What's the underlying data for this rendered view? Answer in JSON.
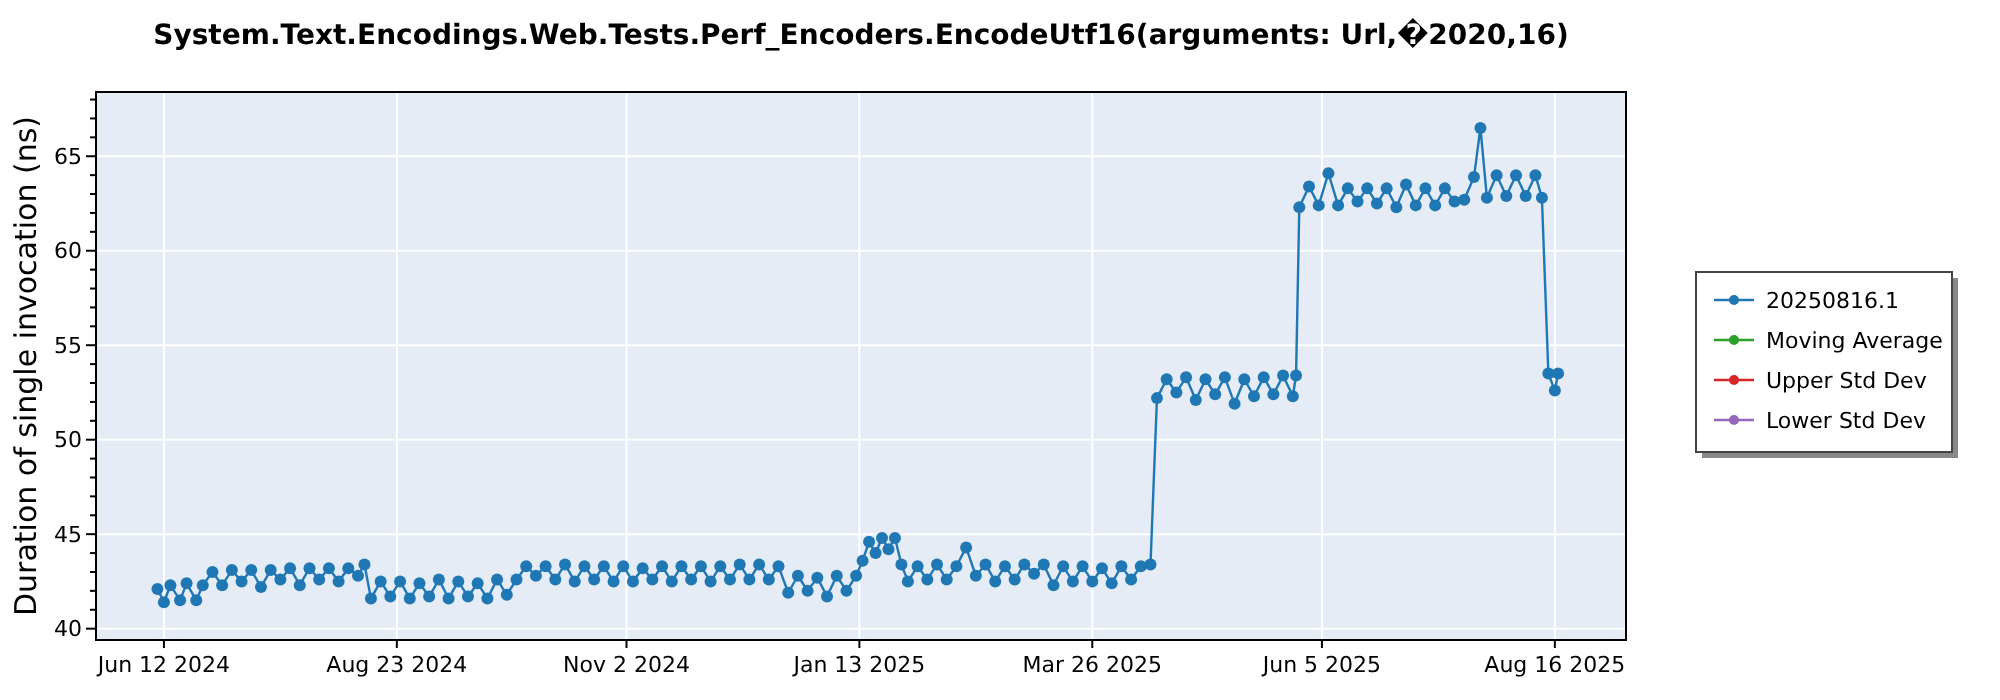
{
  "chart_data": {
    "type": "line",
    "title": "System.Text.Encodings.Web.Tests.Perf_Encoders.EncodeUtf16(arguments: Url,�2020,16)",
    "ylabel": "Duration of single invocation (ns)",
    "xlim": [
      "2024-05-22",
      "2025-09-07"
    ],
    "xticks": [
      {
        "value": "2024-06-12",
        "label": "Jun 12 2024"
      },
      {
        "value": "2024-08-23",
        "label": "Aug 23 2024"
      },
      {
        "value": "2024-11-02",
        "label": "Nov 2 2024"
      },
      {
        "value": "2025-01-13",
        "label": "Jan 13 2025"
      },
      {
        "value": "2025-03-26",
        "label": "Mar 26 2025"
      },
      {
        "value": "2025-06-05",
        "label": "Jun 5 2025"
      },
      {
        "value": "2025-08-16",
        "label": "Aug 16 2025"
      }
    ],
    "ylim": [
      39.4,
      68.4
    ],
    "yticks": [
      40,
      {
        "value": 41,
        "label": null
      },
      {
        "value": 42,
        "label": null
      },
      {
        "value": 43,
        "label": null
      },
      {
        "value": 44,
        "label": null
      },
      45,
      {
        "value": 46,
        "label": null
      },
      {
        "value": 47,
        "label": null
      },
      {
        "value": 48,
        "label": null
      },
      {
        "value": 49,
        "label": null
      },
      50,
      {
        "value": 51,
        "label": null
      },
      {
        "value": 52,
        "label": null
      },
      {
        "value": 53,
        "label": null
      },
      {
        "value": 54,
        "label": null
      },
      55,
      {
        "value": 56,
        "label": null
      },
      {
        "value": 57,
        "label": null
      },
      {
        "value": 58,
        "label": null
      },
      {
        "value": 59,
        "label": null
      },
      60,
      {
        "value": 61,
        "label": null
      },
      {
        "value": 62,
        "label": null
      },
      {
        "value": 63,
        "label": null
      },
      {
        "value": 64,
        "label": null
      },
      65,
      {
        "value": 66,
        "label": null
      },
      {
        "value": 67,
        "label": null
      },
      {
        "value": 68,
        "label": null
      }
    ],
    "grid": true,
    "legend": "right",
    "marker": "circle",
    "line_style": "solid",
    "series": [
      {
        "name": "20250816.1",
        "color": "#1f77b4",
        "x": [
          "2024-06-10",
          "2024-06-12",
          "2024-06-14",
          "2024-06-17",
          "2024-06-19",
          "2024-06-22",
          "2024-06-24",
          "2024-06-27",
          "2024-06-30",
          "2024-07-03",
          "2024-07-06",
          "2024-07-09",
          "2024-07-12",
          "2024-07-15",
          "2024-07-18",
          "2024-07-21",
          "2024-07-24",
          "2024-07-27",
          "2024-07-30",
          "2024-08-02",
          "2024-08-05",
          "2024-08-08",
          "2024-08-11",
          "2024-08-13",
          "2024-08-15",
          "2024-08-18",
          "2024-08-21",
          "2024-08-24",
          "2024-08-27",
          "2024-08-30",
          "2024-09-02",
          "2024-09-05",
          "2024-09-08",
          "2024-09-11",
          "2024-09-14",
          "2024-09-17",
          "2024-09-20",
          "2024-09-23",
          "2024-09-26",
          "2024-09-29",
          "2024-10-02",
          "2024-10-05",
          "2024-10-08",
          "2024-10-11",
          "2024-10-14",
          "2024-10-17",
          "2024-10-20",
          "2024-10-23",
          "2024-10-26",
          "2024-10-29",
          "2024-11-01",
          "2024-11-04",
          "2024-11-07",
          "2024-11-10",
          "2024-11-13",
          "2024-11-16",
          "2024-11-19",
          "2024-11-22",
          "2024-11-25",
          "2024-11-28",
          "2024-12-01",
          "2024-12-04",
          "2024-12-07",
          "2024-12-10",
          "2024-12-13",
          "2024-12-16",
          "2024-12-19",
          "2024-12-22",
          "2024-12-25",
          "2024-12-28",
          "2024-12-31",
          "2025-01-03",
          "2025-01-06",
          "2025-01-09",
          "2025-01-12",
          "2025-01-14",
          "2025-01-16",
          "2025-01-18",
          "2025-01-20",
          "2025-01-22",
          "2025-01-24",
          "2025-01-26",
          "2025-01-28",
          "2025-01-31",
          "2025-02-03",
          "2025-02-06",
          "2025-02-09",
          "2025-02-12",
          "2025-02-15",
          "2025-02-18",
          "2025-02-21",
          "2025-02-24",
          "2025-02-27",
          "2025-03-02",
          "2025-03-05",
          "2025-03-08",
          "2025-03-11",
          "2025-03-14",
          "2025-03-17",
          "2025-03-20",
          "2025-03-23",
          "2025-03-26",
          "2025-03-29",
          "2025-04-01",
          "2025-04-04",
          "2025-04-07",
          "2025-04-10",
          "2025-04-13",
          "2025-04-15",
          "2025-04-18",
          "2025-04-21",
          "2025-04-24",
          "2025-04-27",
          "2025-04-30",
          "2025-05-03",
          "2025-05-06",
          "2025-05-09",
          "2025-05-12",
          "2025-05-15",
          "2025-05-18",
          "2025-05-21",
          "2025-05-24",
          "2025-05-27",
          "2025-05-28",
          "2025-05-29",
          "2025-06-01",
          "2025-06-04",
          "2025-06-07",
          "2025-06-10",
          "2025-06-13",
          "2025-06-16",
          "2025-06-19",
          "2025-06-22",
          "2025-06-25",
          "2025-06-28",
          "2025-07-01",
          "2025-07-04",
          "2025-07-07",
          "2025-07-10",
          "2025-07-13",
          "2025-07-16",
          "2025-07-19",
          "2025-07-22",
          "2025-07-24",
          "2025-07-26",
          "2025-07-29",
          "2025-08-01",
          "2025-08-04",
          "2025-08-07",
          "2025-08-10",
          "2025-08-12",
          "2025-08-14",
          "2025-08-16",
          "2025-08-17"
        ],
        "values": [
          42.1,
          41.4,
          42.3,
          41.5,
          42.4,
          41.5,
          42.3,
          43.0,
          42.3,
          43.1,
          42.5,
          43.1,
          42.2,
          43.1,
          42.6,
          43.2,
          42.3,
          43.2,
          42.6,
          43.2,
          42.5,
          43.2,
          42.8,
          43.4,
          41.6,
          42.5,
          41.7,
          42.5,
          41.6,
          42.4,
          41.7,
          42.6,
          41.6,
          42.5,
          41.7,
          42.4,
          41.6,
          42.6,
          41.8,
          42.6,
          43.3,
          42.8,
          43.3,
          42.6,
          43.4,
          42.5,
          43.3,
          42.6,
          43.3,
          42.5,
          43.3,
          42.5,
          43.2,
          42.6,
          43.3,
          42.5,
          43.3,
          42.6,
          43.3,
          42.5,
          43.3,
          42.6,
          43.4,
          42.6,
          43.4,
          42.6,
          43.3,
          41.9,
          42.8,
          42.0,
          42.7,
          41.7,
          42.8,
          42.0,
          42.8,
          43.6,
          44.6,
          44.0,
          44.8,
          44.2,
          44.8,
          43.4,
          42.5,
          43.3,
          42.6,
          43.4,
          42.6,
          43.3,
          44.3,
          42.8,
          43.4,
          42.5,
          43.3,
          42.6,
          43.4,
          42.9,
          43.4,
          42.3,
          43.3,
          42.5,
          43.3,
          42.5,
          43.2,
          42.4,
          43.3,
          42.6,
          43.3,
          43.4,
          52.2,
          53.2,
          52.5,
          53.3,
          52.1,
          53.2,
          52.4,
          53.3,
          51.9,
          53.2,
          52.3,
          53.3,
          52.4,
          53.4,
          52.3,
          53.4,
          62.3,
          63.4,
          62.4,
          64.1,
          62.4,
          63.3,
          62.6,
          63.3,
          62.5,
          63.3,
          62.3,
          63.5,
          62.4,
          63.3,
          62.4,
          63.3,
          62.6,
          62.7,
          63.9,
          66.5,
          62.8,
          64.0,
          62.9,
          64.0,
          62.9,
          64.0,
          62.8,
          53.5,
          52.6,
          53.5
        ]
      },
      {
        "name": "Moving Average",
        "color": "#2ca02c"
      },
      {
        "name": "Upper Std Dev",
        "color": "#d62728"
      },
      {
        "name": "Lower Std Dev",
        "color": "#9467bd"
      }
    ]
  }
}
